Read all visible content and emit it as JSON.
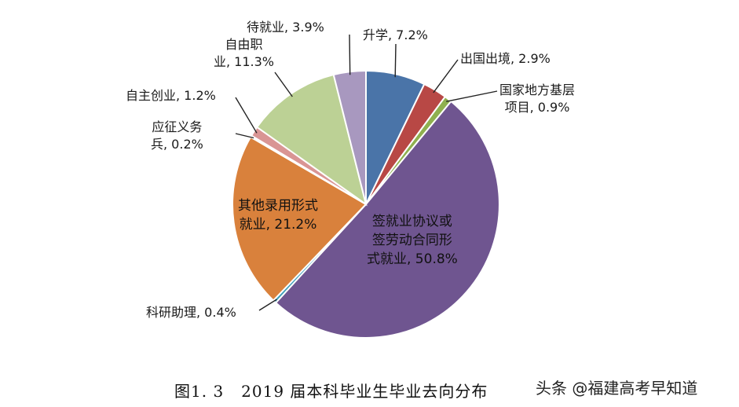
{
  "chart_data": {
    "type": "pie",
    "title": "",
    "slices": [
      {
        "label": "升学",
        "value": 7.2,
        "display": "升学, 7.2%",
        "color": "#4a74a8"
      },
      {
        "label": "出国出境",
        "value": 2.9,
        "display": "出国出境, 2.9%",
        "color": "#b84845"
      },
      {
        "label": "国家地方基层项目",
        "value": 0.9,
        "display": "国家地方基层\n项目, 0.9%",
        "color": "#8fb04f"
      },
      {
        "label": "签就业协议或签劳动合同形式就业",
        "value": 50.8,
        "display": "签就业协议或\n签劳动合同形\n式就业, 50.8%",
        "color": "#6f5590"
      },
      {
        "label": "科研助理",
        "value": 0.4,
        "display": "科研助理, 0.4%",
        "color": "#3b9cb7"
      },
      {
        "label": "其他录用形式就业",
        "value": 21.2,
        "display": "其他录用形式\n就业, 21.2%",
        "color": "#d9813c"
      },
      {
        "label": "应征义务兵",
        "value": 0.2,
        "display": "应征义务\n兵, 0.2%",
        "color": "#98b4d8"
      },
      {
        "label": "自主创业",
        "value": 1.2,
        "display": "自主创业, 1.2%",
        "color": "#d99594"
      },
      {
        "label": "自由职业",
        "value": 11.3,
        "display": "自由职\n业, 11.3%",
        "color": "#bcd195"
      },
      {
        "label": "待就业",
        "value": 3.9,
        "display": "待就业, 3.9%",
        "color": "#a898bf"
      }
    ]
  },
  "caption": {
    "figure_number": "图1. 3",
    "text": "2019 届本科毕业生毕业去向分布"
  },
  "watermark": "头条 @福建高考早知道"
}
